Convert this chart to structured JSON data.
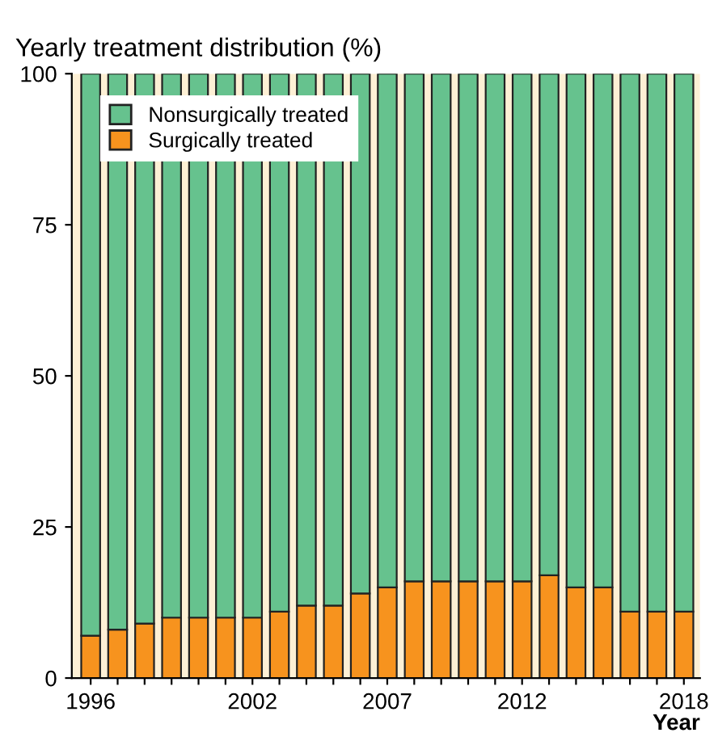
{
  "chart_data": {
    "type": "bar",
    "stacked": true,
    "title": "Yearly treatment distribution (%)",
    "xlabel": "Year",
    "x": [
      1996,
      1997,
      1998,
      1999,
      2000,
      2001,
      2002,
      2003,
      2004,
      2005,
      2006,
      2007,
      2008,
      2009,
      2010,
      2011,
      2012,
      2013,
      2014,
      2015,
      2016,
      2017,
      2018
    ],
    "series": [
      {
        "name": "Surgically treated",
        "color": "#f7931e",
        "values": [
          7,
          8,
          9,
          10,
          10,
          10,
          10,
          11,
          12,
          12,
          14,
          15,
          16,
          16,
          16,
          16,
          16,
          17,
          15,
          15,
          11,
          11,
          11
        ]
      },
      {
        "name": "Nonsurgically treated",
        "color": "#66c28e",
        "values": [
          93,
          92,
          91,
          90,
          90,
          90,
          90,
          89,
          88,
          88,
          86,
          85,
          84,
          84,
          84,
          84,
          84,
          83,
          85,
          85,
          89,
          89,
          89
        ]
      }
    ],
    "xlim": [
      1995.3,
      2018.6
    ],
    "xticks": [
      1996,
      {
        "value": 1997,
        "label": null
      },
      {
        "value": 1998,
        "label": null
      },
      {
        "value": 1999,
        "label": null
      },
      {
        "value": 2000,
        "label": null
      },
      {
        "value": 2001,
        "label": null
      },
      2002,
      {
        "value": 2003,
        "label": null
      },
      {
        "value": 2004,
        "label": null
      },
      {
        "value": 2005,
        "label": null
      },
      {
        "value": 2006,
        "label": null
      },
      2007,
      {
        "value": 2008,
        "label": null
      },
      {
        "value": 2009,
        "label": null
      },
      {
        "value": 2010,
        "label": null
      },
      {
        "value": 2011,
        "label": null
      },
      2012,
      {
        "value": 2013,
        "label": null
      },
      {
        "value": 2014,
        "label": null
      },
      {
        "value": 2015,
        "label": null
      },
      {
        "value": 2016,
        "label": null
      },
      {
        "value": 2017,
        "label": null
      },
      2018
    ],
    "ylim": [
      0,
      100
    ],
    "yticks": [
      0,
      25,
      50,
      75,
      100
    ],
    "bands": [
      {
        "axis": "y",
        "from": 0,
        "to": 100,
        "color": "#fdf0d5"
      }
    ],
    "grid": false,
    "legend": "top left"
  }
}
